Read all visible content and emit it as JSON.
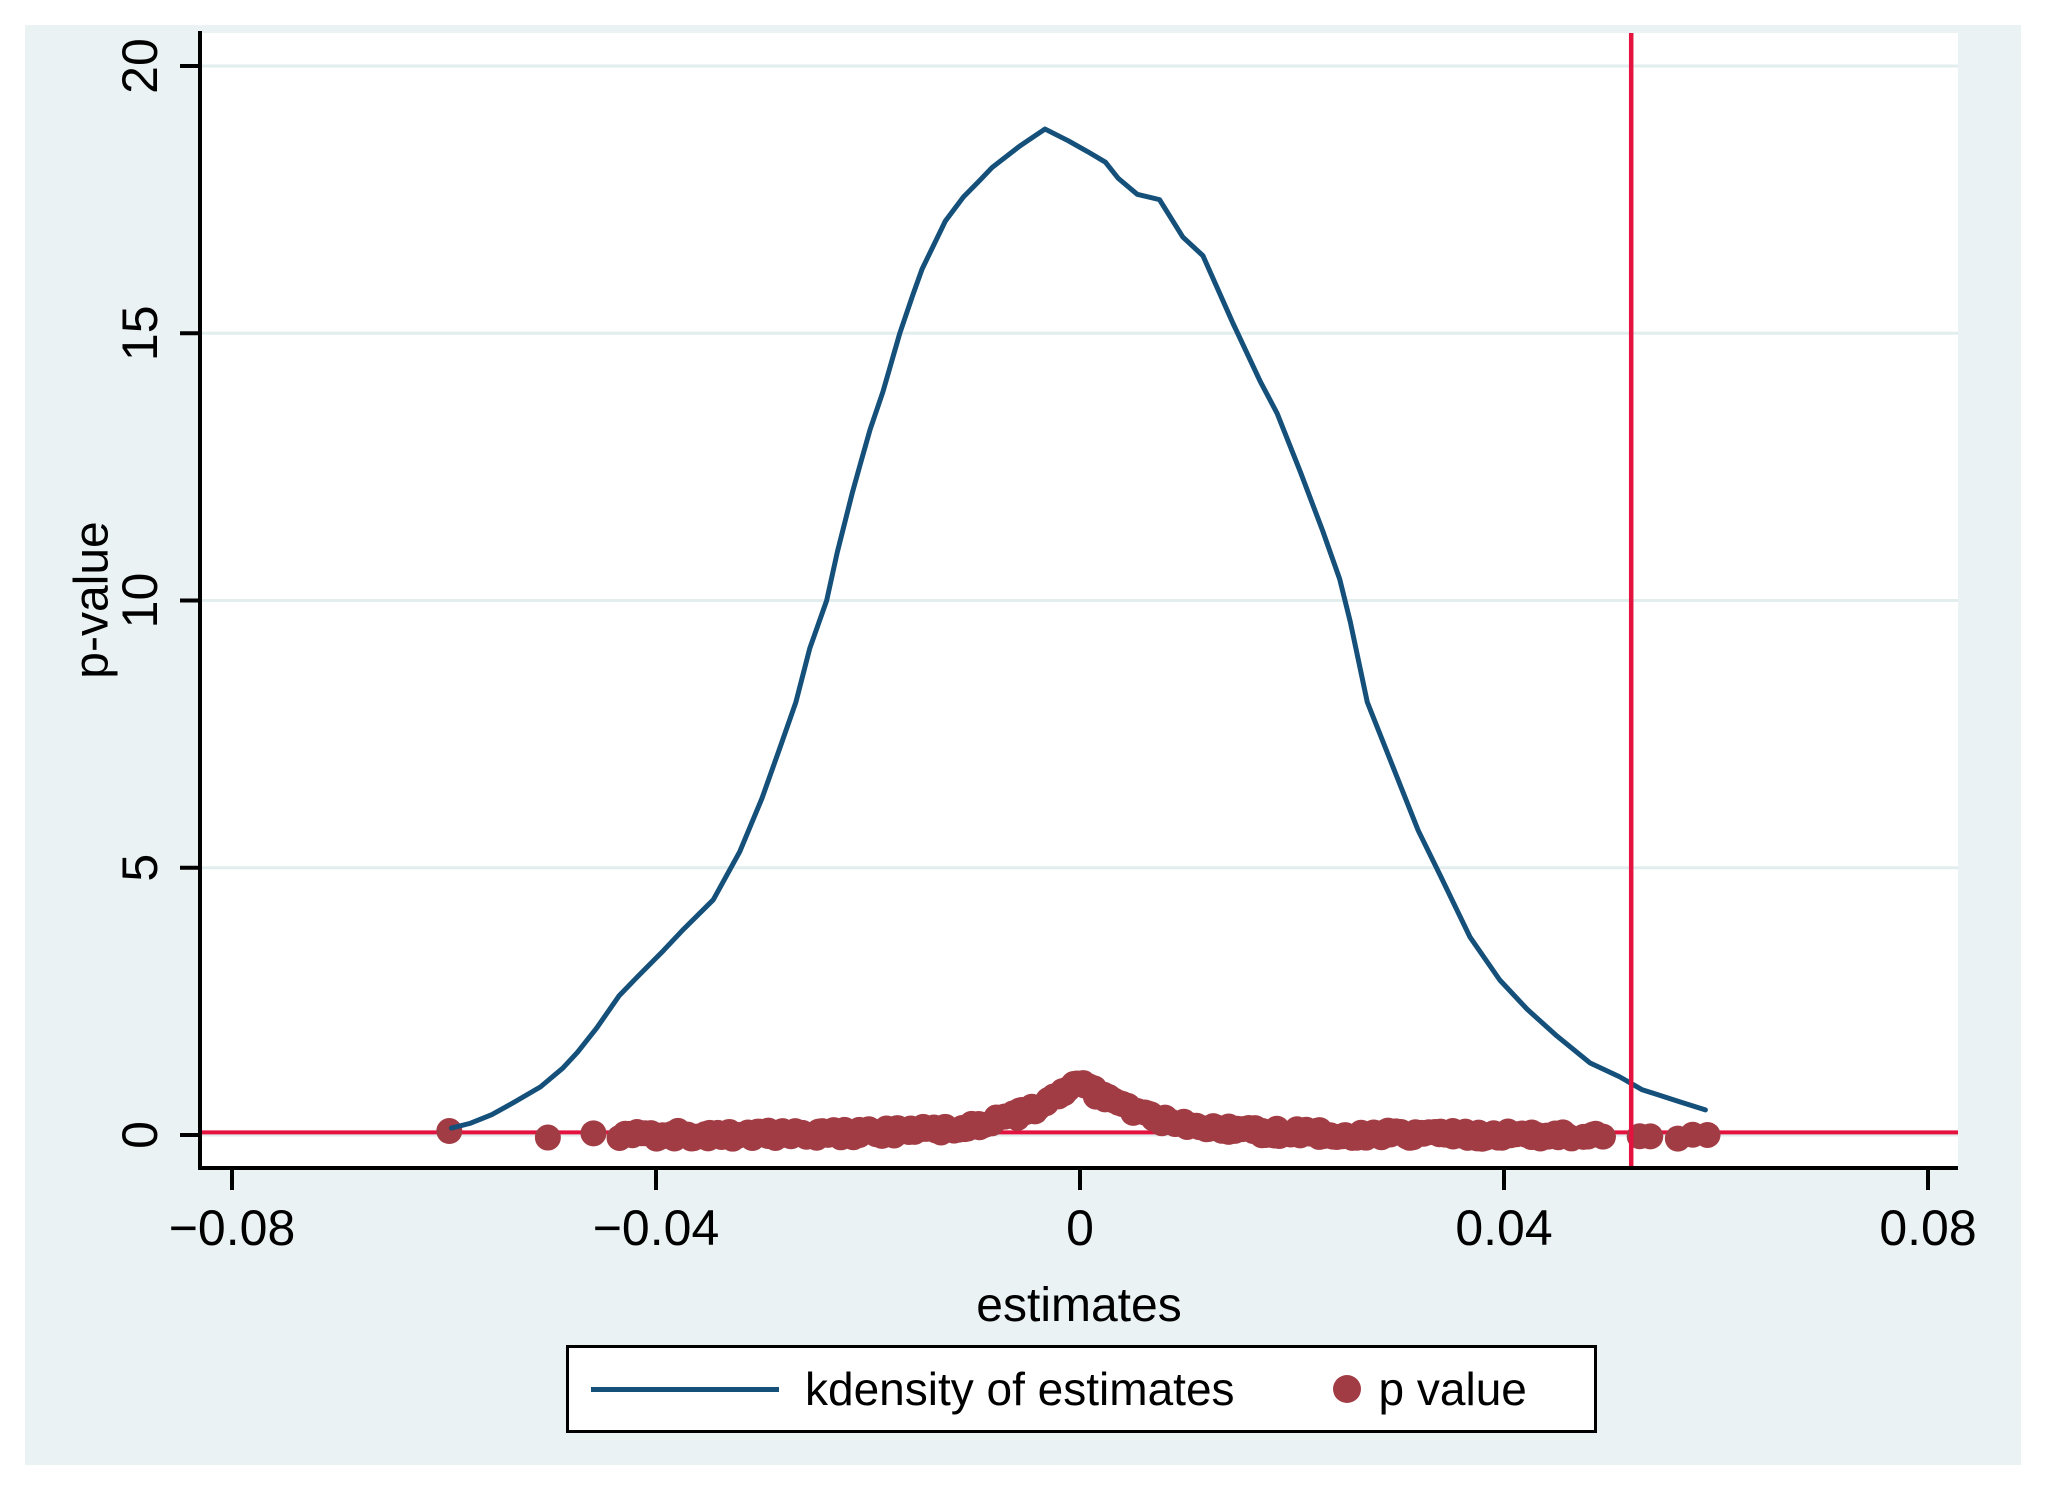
{
  "legend": {
    "items": [
      {
        "label": "kdensity of estimates",
        "swatch": "line",
        "color": "#14507a"
      },
      {
        "label": "p value",
        "swatch": "dot",
        "color": "#a23c44"
      }
    ]
  },
  "colors": {
    "figure_background": "#eaf2f3",
    "plot_background": "#ffffff",
    "gridline": "#e2edee",
    "axis": "#000000",
    "kdensity_line": "#14507a",
    "p_value_dots": "#a23c44",
    "reference_lines": "#e4123f"
  },
  "chart_data": {
    "type": "line+scatter",
    "title": "",
    "xlabel": "estimates",
    "ylabel": "p-value",
    "xlim": [
      -0.083,
      0.0828
    ],
    "ylim": [
      -0.62,
      20.62
    ],
    "xticks": [
      -0.08,
      -0.04,
      0,
      0.04,
      0.08
    ],
    "xtick_labels": [
      "−0.08",
      "−0.04",
      "0",
      "0.04",
      "0.08"
    ],
    "yticks": [
      0,
      5,
      10,
      15,
      20
    ],
    "ytick_labels": [
      "0",
      "5",
      "10",
      "15",
      "20"
    ],
    "grid": "horizontal-only",
    "legend_position": "bottom-center",
    "reference_lines": {
      "horizontal_y": 0.05,
      "vertical_x": 0.052,
      "color": "#e4123f"
    },
    "series": [
      {
        "name": "kdensity of estimates",
        "type": "line",
        "color": "#14507a",
        "peak": {
          "x": -0.003,
          "y": 18.8
        },
        "points": [
          [
            -0.0593,
            0.13
          ],
          [
            -0.0575,
            0.22
          ],
          [
            -0.0555,
            0.38
          ],
          [
            -0.0535,
            0.6
          ],
          [
            -0.0509,
            0.9
          ],
          [
            -0.0488,
            1.25
          ],
          [
            -0.0474,
            1.55
          ],
          [
            -0.0456,
            2.0
          ],
          [
            -0.0435,
            2.6
          ],
          [
            -0.0418,
            2.95
          ],
          [
            -0.0393,
            3.45
          ],
          [
            -0.0374,
            3.85
          ],
          [
            -0.0346,
            4.4
          ],
          [
            -0.0321,
            5.3
          ],
          [
            -0.03,
            6.3
          ],
          [
            -0.0283,
            7.25
          ],
          [
            -0.0268,
            8.1
          ],
          [
            -0.0255,
            9.1
          ],
          [
            -0.0239,
            10.0
          ],
          [
            -0.0229,
            10.9
          ],
          [
            -0.0215,
            12.0
          ],
          [
            -0.0208,
            12.5
          ],
          [
            -0.0198,
            13.2
          ],
          [
            -0.0186,
            13.9
          ],
          [
            -0.017,
            15.0
          ],
          [
            -0.0158,
            15.7
          ],
          [
            -0.0149,
            16.2
          ],
          [
            -0.0127,
            17.1
          ],
          [
            -0.011,
            17.55
          ],
          [
            -0.0095,
            17.85
          ],
          [
            -0.0083,
            18.1
          ],
          [
            -0.0057,
            18.5
          ],
          [
            -0.0042,
            18.7
          ],
          [
            -0.0033,
            18.82
          ],
          [
            -0.0011,
            18.6
          ],
          [
            0.0007,
            18.4
          ],
          [
            0.0024,
            18.2
          ],
          [
            0.0036,
            17.9
          ],
          [
            0.0054,
            17.6
          ],
          [
            0.0075,
            17.5
          ],
          [
            0.0097,
            16.8
          ],
          [
            0.0116,
            16.45
          ],
          [
            0.0144,
            15.2
          ],
          [
            0.017,
            14.1
          ],
          [
            0.0186,
            13.5
          ],
          [
            0.0208,
            12.4
          ],
          [
            0.0229,
            11.3
          ],
          [
            0.0245,
            10.4
          ],
          [
            0.0255,
            9.6
          ],
          [
            0.0271,
            8.1
          ],
          [
            0.0295,
            6.9
          ],
          [
            0.0319,
            5.7
          ],
          [
            0.034,
            4.85
          ],
          [
            0.0368,
            3.7
          ],
          [
            0.0396,
            2.9
          ],
          [
            0.0422,
            2.35
          ],
          [
            0.045,
            1.85
          ],
          [
            0.0481,
            1.35
          ],
          [
            0.0509,
            1.09
          ],
          [
            0.053,
            0.85
          ],
          [
            0.0566,
            0.62
          ],
          [
            0.059,
            0.47
          ]
        ]
      },
      {
        "name": "p value",
        "type": "scatter",
        "color": "#a23c44",
        "marker_radius_px": 13,
        "p_model": "p = exp(-|estimate|/0.006), peak p≈1 at estimate=0, ≈0 for |estimate|>0.02",
        "decay": 0.006,
        "clusters": [
          {
            "from": -0.0435,
            "to": 0.0465,
            "count": 230
          },
          {
            "from": 0.047,
            "to": 0.0495,
            "count": 5
          }
        ],
        "isolated_x": [
          -0.0595,
          -0.0502,
          -0.0459,
          0.0528,
          0.0538,
          0.0564,
          0.0578,
          0.0592
        ]
      }
    ]
  }
}
